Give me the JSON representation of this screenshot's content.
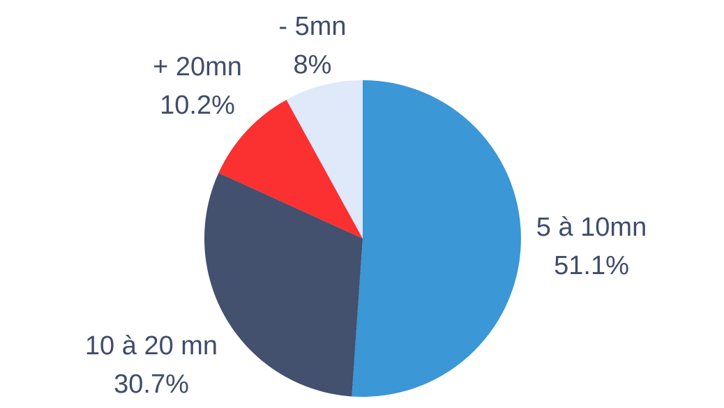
{
  "chart_data": {
    "type": "pie",
    "title": "",
    "slices": [
      {
        "label": "5 à 10mn",
        "value": 51.1,
        "value_label": "51.1%",
        "color": "#3b97d6"
      },
      {
        "label": "10 à 20 mn",
        "value": 30.7,
        "value_label": "30.7%",
        "color": "#43506e"
      },
      {
        "label": "+ 20mn",
        "value": 10.2,
        "value_label": "10.2%",
        "color": "#fb3030"
      },
      {
        "label": "- 5mn",
        "value": 8,
        "value_label": "8%",
        "color": "#dfe9fa"
      }
    ],
    "start_angle": "top (12 o'clock), clockwise",
    "legend": "none (labels outside slices)"
  }
}
